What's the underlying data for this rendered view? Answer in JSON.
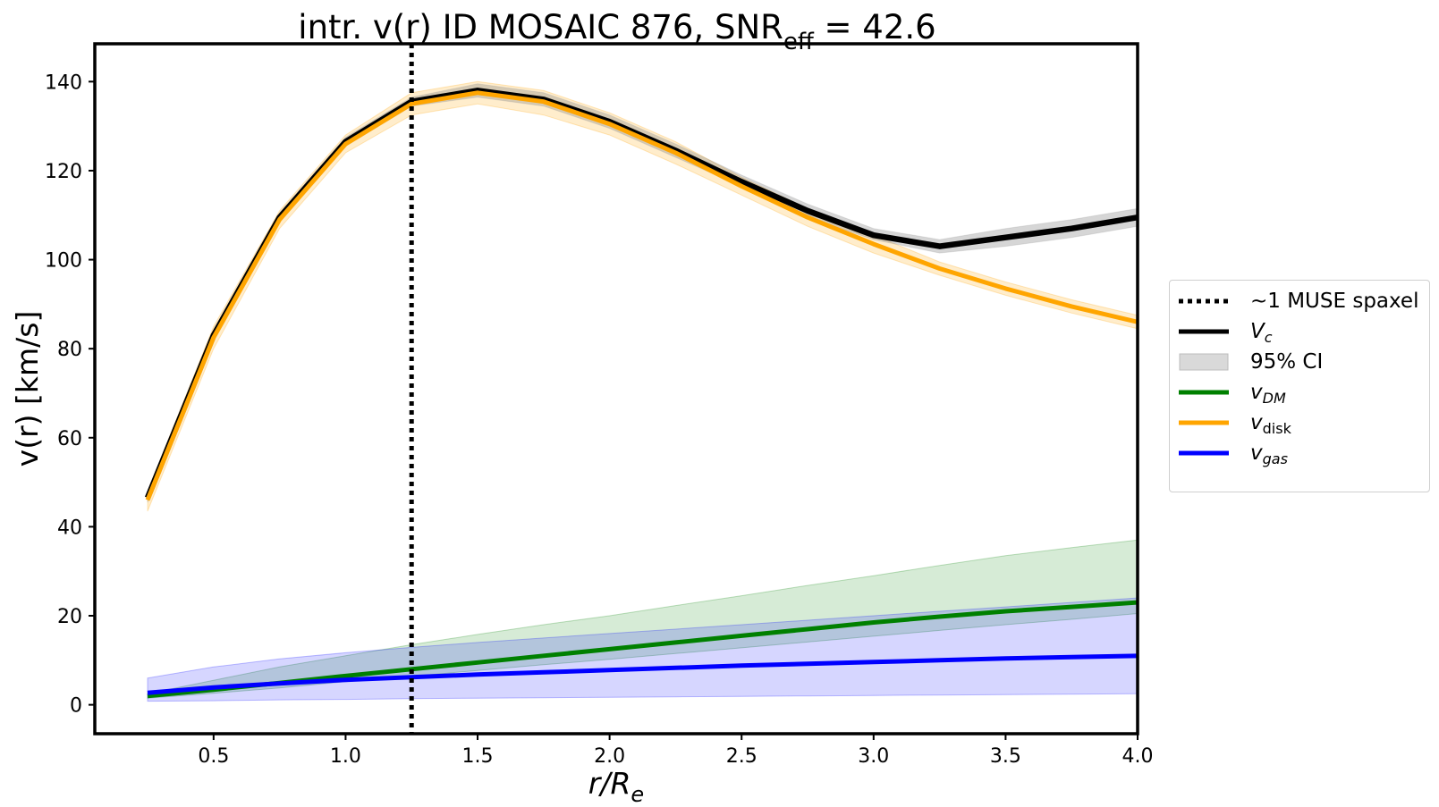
{
  "chart_data": {
    "type": "line",
    "title": "intr. v(r) ID MOSAIC 876, ",
    "title_snr_label": "SNR",
    "title_snr_sub": "eff",
    "title_snr_value": " = 42.6",
    "xlabel": "r/R",
    "xlabel_sub": "e",
    "ylabel": "v(r) [km/s]",
    "xlim": [
      0.05,
      4.0
    ],
    "ylim": [
      -6.5,
      148.5
    ],
    "xticks": [
      0.5,
      1.0,
      1.5,
      2.0,
      2.5,
      3.0,
      3.5,
      4.0
    ],
    "xtick_labels": [
      "0.5",
      "1.0",
      "1.5",
      "2.0",
      "2.5",
      "3.0",
      "3.5",
      "4.0"
    ],
    "yticks": [
      0,
      20,
      40,
      60,
      80,
      100,
      120,
      140
    ],
    "ytick_labels": [
      "0",
      "20",
      "40",
      "60",
      "80",
      "100",
      "120",
      "140"
    ],
    "x": [
      0.25,
      0.5,
      0.75,
      1.0,
      1.25,
      1.5,
      1.75,
      2.0,
      2.25,
      2.5,
      2.75,
      3.0,
      3.25,
      3.5,
      3.75,
      4.0
    ],
    "muse_spaxel_r": 1.25,
    "series": [
      {
        "name": "V_c",
        "color": "#000000",
        "values": [
          46.5,
          83,
          109.5,
          126.5,
          135.5,
          138,
          136,
          131,
          124.5,
          117.5,
          111,
          105.5,
          103,
          105,
          107,
          109.5
        ],
        "ci_lower": [
          45.5,
          82,
          108.5,
          125.5,
          134.5,
          136.5,
          134.5,
          129.5,
          123,
          116.5,
          109.5,
          104.5,
          101.5,
          103,
          105,
          107.5
        ],
        "ci_upper": [
          47.5,
          84,
          110.5,
          127.5,
          136.5,
          139.5,
          137.5,
          132.5,
          126,
          119,
          112.5,
          107,
          104.5,
          107,
          109,
          111.5
        ]
      },
      {
        "name": "v_DM",
        "color": "#008000",
        "values": [
          2,
          3.4,
          4.9,
          6.5,
          8.0,
          9.5,
          11.0,
          12.5,
          14.0,
          15.5,
          17.0,
          18.5,
          19.8,
          21.0,
          22.0,
          23.0
        ],
        "ci_lower": [
          1.5,
          2.6,
          3.8,
          5.2,
          6.4,
          7.7,
          9.0,
          10.2,
          11.5,
          12.8,
          14.1,
          15.4,
          16.7,
          18.0,
          19.2,
          20.5
        ],
        "ci_upper": [
          2.5,
          5.5,
          8.5,
          11.0,
          13.5,
          15.8,
          18.0,
          20.0,
          22.3,
          24.5,
          26.8,
          29.0,
          31.3,
          33.5,
          35.3,
          37.0
        ]
      },
      {
        "name": "v_disk",
        "color": "#ffa500",
        "values": [
          46,
          82.5,
          109,
          126,
          135,
          137.5,
          135.5,
          130.5,
          124,
          116.5,
          109.5,
          103.5,
          98,
          93.5,
          89.5,
          86
        ],
        "ci_lower": [
          43.5,
          80,
          107,
          124,
          132.5,
          135,
          132.5,
          128,
          121.5,
          114.5,
          107.5,
          101.5,
          96.5,
          92,
          88,
          84.5
        ],
        "ci_upper": [
          48,
          85,
          111,
          128,
          137.5,
          140,
          138,
          133,
          126.5,
          118.5,
          111.5,
          105.5,
          99.5,
          95,
          91,
          87.5
        ]
      },
      {
        "name": "v_gas",
        "color": "#0000ff",
        "values": [
          2.7,
          3.9,
          4.8,
          5.6,
          6.2,
          6.8,
          7.3,
          7.8,
          8.3,
          8.8,
          9.2,
          9.6,
          10.0,
          10.4,
          10.7,
          11.0
        ],
        "ci_lower": [
          0.8,
          0.9,
          1.1,
          1.2,
          1.4,
          1.5,
          1.6,
          1.7,
          1.8,
          1.9,
          2.0,
          2.1,
          2.2,
          2.3,
          2.4,
          2.5
        ],
        "ci_upper": [
          6,
          8.5,
          10.3,
          11.7,
          12.9,
          14.0,
          15.0,
          16.0,
          17.0,
          18.0,
          19.0,
          20.0,
          21.0,
          22.0,
          23.0,
          24.0
        ]
      }
    ],
    "legend": {
      "position": "right, outside",
      "entries": [
        {
          "label": "~1 MUSE spaxel",
          "style": "dotted",
          "color": "#000000"
        },
        {
          "label": "V",
          "sub": "c",
          "italic": true,
          "style": "line",
          "color": "#000000"
        },
        {
          "label": "95% CI",
          "style": "patch",
          "color": "#d9d9d9"
        },
        {
          "label": "v",
          "sub": "DM",
          "italic": true,
          "style": "line",
          "color": "#008000"
        },
        {
          "label": "v",
          "sub": "disk",
          "italic": false,
          "style": "line",
          "color": "#ffa500"
        },
        {
          "label": "v",
          "sub": "gas",
          "italic": true,
          "style": "line",
          "color": "#0000ff"
        }
      ]
    },
    "grid": false
  }
}
